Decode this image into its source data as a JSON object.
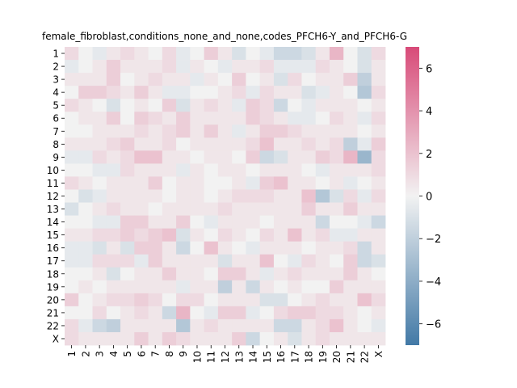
{
  "chart_data": {
    "type": "heatmap",
    "title": "female_fibroblast,conditions_none_and_none,codes_PFCH6-Y_and_PFCH6-G",
    "xlabel": "",
    "ylabel": "",
    "rows": [
      "1",
      "2",
      "3",
      "4",
      "5",
      "6",
      "7",
      "8",
      "9",
      "10",
      "11",
      "12",
      "13",
      "14",
      "15",
      "16",
      "17",
      "18",
      "19",
      "20",
      "21",
      "22",
      "X"
    ],
    "cols": [
      "1",
      "2",
      "3",
      "4",
      "5",
      "6",
      "7",
      "8",
      "9",
      "10",
      "11",
      "12",
      "13",
      "14",
      "15",
      "16",
      "17",
      "18",
      "19",
      "20",
      "21",
      "22",
      "X"
    ],
    "vmin": -7,
    "vmax": 7,
    "colorbar_ticks": [
      6,
      4,
      2,
      0,
      -2,
      -4,
      -6
    ],
    "colormap": {
      "low": "#4279a6",
      "mid": "#f2f2f2",
      "high": "#d84a78"
    },
    "values": [
      [
        1.0,
        0.0,
        -0.5,
        0.5,
        1.0,
        0.5,
        0.0,
        1.0,
        -0.5,
        0.0,
        1.5,
        0.5,
        -1.0,
        0.0,
        -0.5,
        -1.5,
        -1.5,
        -1.0,
        0.5,
        2.5,
        0.0,
        -1.0,
        1.0
      ],
      [
        -0.5,
        0.0,
        0.5,
        1.5,
        0.5,
        0.5,
        0.5,
        1.0,
        -0.5,
        0.5,
        0.0,
        -0.5,
        0.5,
        0.5,
        1.0,
        -0.5,
        -0.5,
        -0.5,
        1.0,
        0.5,
        0.0,
        -1.0,
        0.5
      ],
      [
        0.5,
        0.5,
        0.5,
        1.5,
        0.0,
        0.5,
        1.0,
        0.5,
        0.5,
        -0.5,
        0.5,
        0.0,
        1.5,
        0.0,
        0.5,
        -1.0,
        1.0,
        0.0,
        0.5,
        0.5,
        1.5,
        -2.0,
        0.5
      ],
      [
        0.0,
        1.5,
        1.5,
        1.0,
        0.5,
        1.5,
        0.5,
        -0.5,
        -0.5,
        0.0,
        0.0,
        0.5,
        1.0,
        -0.5,
        1.0,
        0.5,
        0.5,
        -1.0,
        -0.5,
        0.5,
        0.0,
        -2.5,
        1.0
      ],
      [
        1.0,
        0.5,
        0.0,
        -1.0,
        0.0,
        0.5,
        0.0,
        1.5,
        -1.0,
        0.5,
        1.0,
        0.5,
        -0.5,
        1.5,
        1.0,
        -1.5,
        0.0,
        -0.5,
        0.5,
        0.5,
        0.5,
        0.0,
        0.5
      ],
      [
        0.0,
        0.5,
        0.5,
        1.5,
        0.0,
        1.5,
        1.0,
        0.5,
        1.5,
        0.5,
        0.5,
        0.5,
        0.5,
        1.5,
        1.0,
        0.5,
        -0.5,
        -0.5,
        0.0,
        1.0,
        0.5,
        -0.5,
        1.0
      ],
      [
        0.0,
        0.0,
        0.5,
        0.5,
        0.5,
        1.0,
        0.5,
        1.0,
        1.5,
        0.5,
        1.5,
        0.5,
        -0.5,
        0.5,
        1.5,
        1.5,
        1.0,
        0.5,
        0.5,
        0.5,
        0.5,
        0.0,
        0.5
      ],
      [
        0.5,
        0.5,
        0.5,
        1.0,
        1.5,
        0.5,
        0.5,
        1.0,
        0.0,
        0.5,
        0.5,
        0.5,
        0.5,
        1.0,
        2.0,
        0.5,
        0.5,
        1.0,
        0.5,
        1.0,
        -2.0,
        -0.5,
        1.5
      ],
      [
        -0.5,
        -0.5,
        1.0,
        0.5,
        1.0,
        2.0,
        2.0,
        0.5,
        0.5,
        0.0,
        0.5,
        0.5,
        0.0,
        1.5,
        -1.5,
        -1.0,
        0.5,
        0.5,
        1.5,
        1.0,
        2.5,
        -3.5,
        1.0
      ],
      [
        0.0,
        0.0,
        -0.5,
        -0.5,
        1.0,
        0.5,
        0.5,
        0.5,
        -0.5,
        0.5,
        0.0,
        0.5,
        0.5,
        0.0,
        0.5,
        0.5,
        0.5,
        0.0,
        -0.5,
        0.5,
        0.5,
        0.5,
        1.0
      ],
      [
        1.0,
        0.5,
        0.0,
        0.5,
        0.5,
        0.5,
        1.5,
        0.0,
        0.5,
        0.5,
        0.0,
        0.0,
        0.5,
        -0.5,
        1.5,
        2.0,
        0.5,
        0.5,
        0.0,
        0.5,
        -0.5,
        0.0,
        0.5
      ],
      [
        0.0,
        -1.0,
        -0.5,
        0.5,
        0.5,
        0.5,
        0.5,
        0.0,
        0.5,
        0.5,
        0.0,
        0.5,
        1.0,
        1.0,
        1.0,
        0.5,
        0.5,
        2.0,
        -2.5,
        -1.0,
        1.0,
        -0.5,
        1.0
      ],
      [
        -1.0,
        0.0,
        0.5,
        1.0,
        0.5,
        0.5,
        0.0,
        0.5,
        0.5,
        0.5,
        0.5,
        1.0,
        0.5,
        0.5,
        0.5,
        0.5,
        0.5,
        1.5,
        0.5,
        0.5,
        1.5,
        0.5,
        0.5
      ],
      [
        0.0,
        0.0,
        -0.5,
        -0.5,
        1.5,
        1.5,
        0.5,
        0.5,
        1.5,
        0.0,
        -0.5,
        0.5,
        0.5,
        0.5,
        0.0,
        0.5,
        0.5,
        0.5,
        -1.5,
        0.0,
        0.0,
        -0.5,
        -1.5
      ],
      [
        0.5,
        0.5,
        1.0,
        1.0,
        1.5,
        1.0,
        1.5,
        2.0,
        -1.0,
        0.5,
        0.0,
        1.0,
        0.5,
        0.0,
        1.0,
        0.5,
        2.0,
        0.5,
        1.0,
        -0.5,
        -0.5,
        0.5,
        0.5
      ],
      [
        -0.5,
        -0.5,
        -1.0,
        0.5,
        -1.0,
        1.5,
        1.5,
        0.5,
        -1.5,
        0.0,
        2.0,
        0.5,
        0.0,
        -0.5,
        0.5,
        0.5,
        0.5,
        0.0,
        0.5,
        0.5,
        1.0,
        -1.5,
        0.5
      ],
      [
        -0.5,
        -0.5,
        1.0,
        1.0,
        1.0,
        -0.5,
        1.5,
        0.5,
        0.5,
        0.5,
        0.5,
        -1.0,
        0.5,
        0.5,
        2.0,
        0.0,
        -0.5,
        1.0,
        0.5,
        0.0,
        1.5,
        -1.5,
        -1.0
      ],
      [
        0.0,
        0.0,
        0.5,
        -1.0,
        0.0,
        0.5,
        0.5,
        1.5,
        0.5,
        0.5,
        0.0,
        1.5,
        1.5,
        0.5,
        -0.5,
        0.5,
        1.0,
        0.5,
        0.5,
        0.5,
        1.5,
        0.5,
        0.0
      ],
      [
        0.0,
        0.5,
        0.0,
        0.5,
        0.5,
        0.5,
        0.5,
        0.5,
        -0.5,
        0.5,
        0.5,
        -2.0,
        0.5,
        -1.5,
        0.5,
        0.0,
        0.5,
        0.0,
        0.0,
        1.5,
        0.5,
        0.5,
        0.5
      ],
      [
        1.5,
        0.0,
        0.5,
        1.0,
        1.0,
        1.5,
        1.0,
        0.0,
        1.0,
        1.0,
        0.0,
        0.5,
        0.5,
        0.5,
        -1.0,
        -1.0,
        0.0,
        0.5,
        1.0,
        0.5,
        0.5,
        2.0,
        1.0
      ],
      [
        0.0,
        0.0,
        1.0,
        0.0,
        0.5,
        1.0,
        0.5,
        -1.5,
        2.5,
        0.0,
        -0.5,
        1.5,
        1.5,
        -0.5,
        0.0,
        1.0,
        1.5,
        1.5,
        1.0,
        1.0,
        0.5,
        0.0,
        0.5
      ],
      [
        1.0,
        -0.5,
        -1.5,
        -2.0,
        0.5,
        0.5,
        0.5,
        0.5,
        -2.5,
        0.5,
        1.0,
        0.5,
        0.5,
        0.5,
        0.5,
        -1.5,
        -1.5,
        0.5,
        1.0,
        2.0,
        0.5,
        0.0,
        -0.5
      ],
      [
        1.0,
        0.5,
        0.5,
        0.5,
        0.5,
        1.5,
        0.5,
        1.5,
        1.0,
        0.5,
        0.5,
        0.5,
        1.5,
        -1.5,
        0.0,
        0.5,
        -1.0,
        0.5,
        1.0,
        0.5,
        0.5,
        0.5,
        0.5
      ]
    ]
  }
}
